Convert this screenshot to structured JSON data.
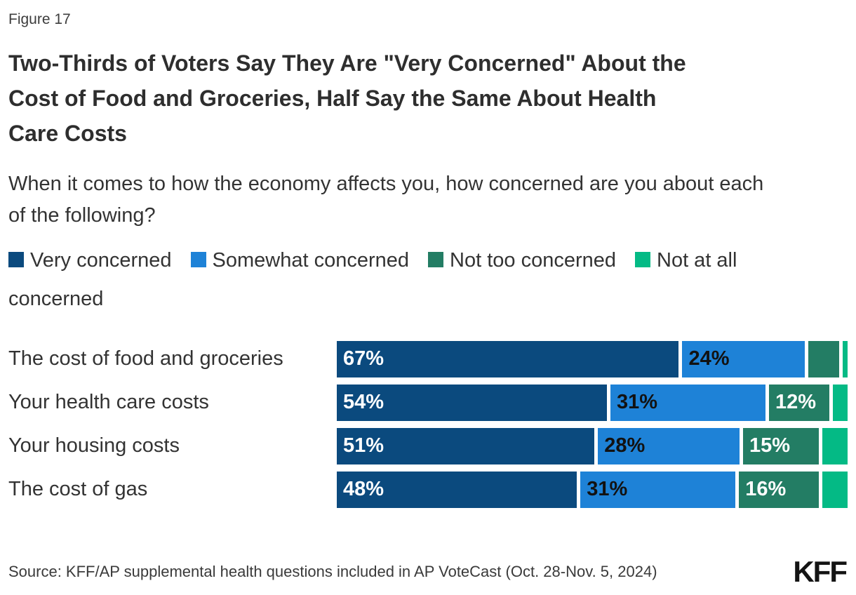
{
  "figure_label": "Figure 17",
  "title": "Two-Thirds of Voters Say They Are \"Very Concerned\" About the Cost of Food and Groceries, Half Say the Same About Health Care Costs",
  "subtitle": "When it comes to how the economy affects you, how concerned are you about each of the following?",
  "source": "Source: KFF/AP supplemental health questions included in AP VoteCast (Oct. 28-Nov. 5, 2024)",
  "logo_text": "KFF",
  "colors": {
    "very_concerned": "#0B4A7E",
    "somewhat_concerned": "#1E82D7",
    "not_too_concerned": "#237D64",
    "not_at_all_concerned": "#04BA85",
    "title_text": "#2E2E2E",
    "body_text": "#333333"
  },
  "chart_data": {
    "type": "bar",
    "stacked": true,
    "orientation": "horizontal",
    "unit": "percent",
    "title": "Two-Thirds of Voters Say They Are \"Very Concerned\" About the Cost of Food and Groceries, Half Say the Same About Health Care Costs",
    "xlabel": "",
    "ylabel": "",
    "xlim": [
      0,
      100
    ],
    "grid": false,
    "legend_position": "top",
    "categories": [
      "The cost of food and groceries",
      "Your health care costs",
      "Your housing costs",
      "The cost of gas"
    ],
    "series": [
      {
        "name": "Very concerned",
        "color": "#0B4A7E",
        "label_color": "#FFFFFF",
        "values": [
          67,
          54,
          51,
          48
        ],
        "labels": [
          "67%",
          "54%",
          "51%",
          "48%"
        ]
      },
      {
        "name": "Somewhat concerned",
        "color": "#1E82D7",
        "label_color": "#121212",
        "values": [
          24,
          31,
          28,
          31
        ],
        "labels": [
          "24%",
          "31%",
          "28%",
          "31%"
        ]
      },
      {
        "name": "Not too concerned",
        "color": "#237D64",
        "label_color": "#FFFFFF",
        "values": [
          6,
          12,
          15,
          16
        ],
        "labels": [
          "",
          "12%",
          "15%",
          "16%"
        ]
      },
      {
        "name": "Not at all concerned",
        "color": "#04BA85",
        "label_color": "#FFFFFF",
        "values": [
          1,
          3,
          5,
          5
        ],
        "labels": [
          "",
          "",
          "",
          ""
        ]
      }
    ]
  }
}
